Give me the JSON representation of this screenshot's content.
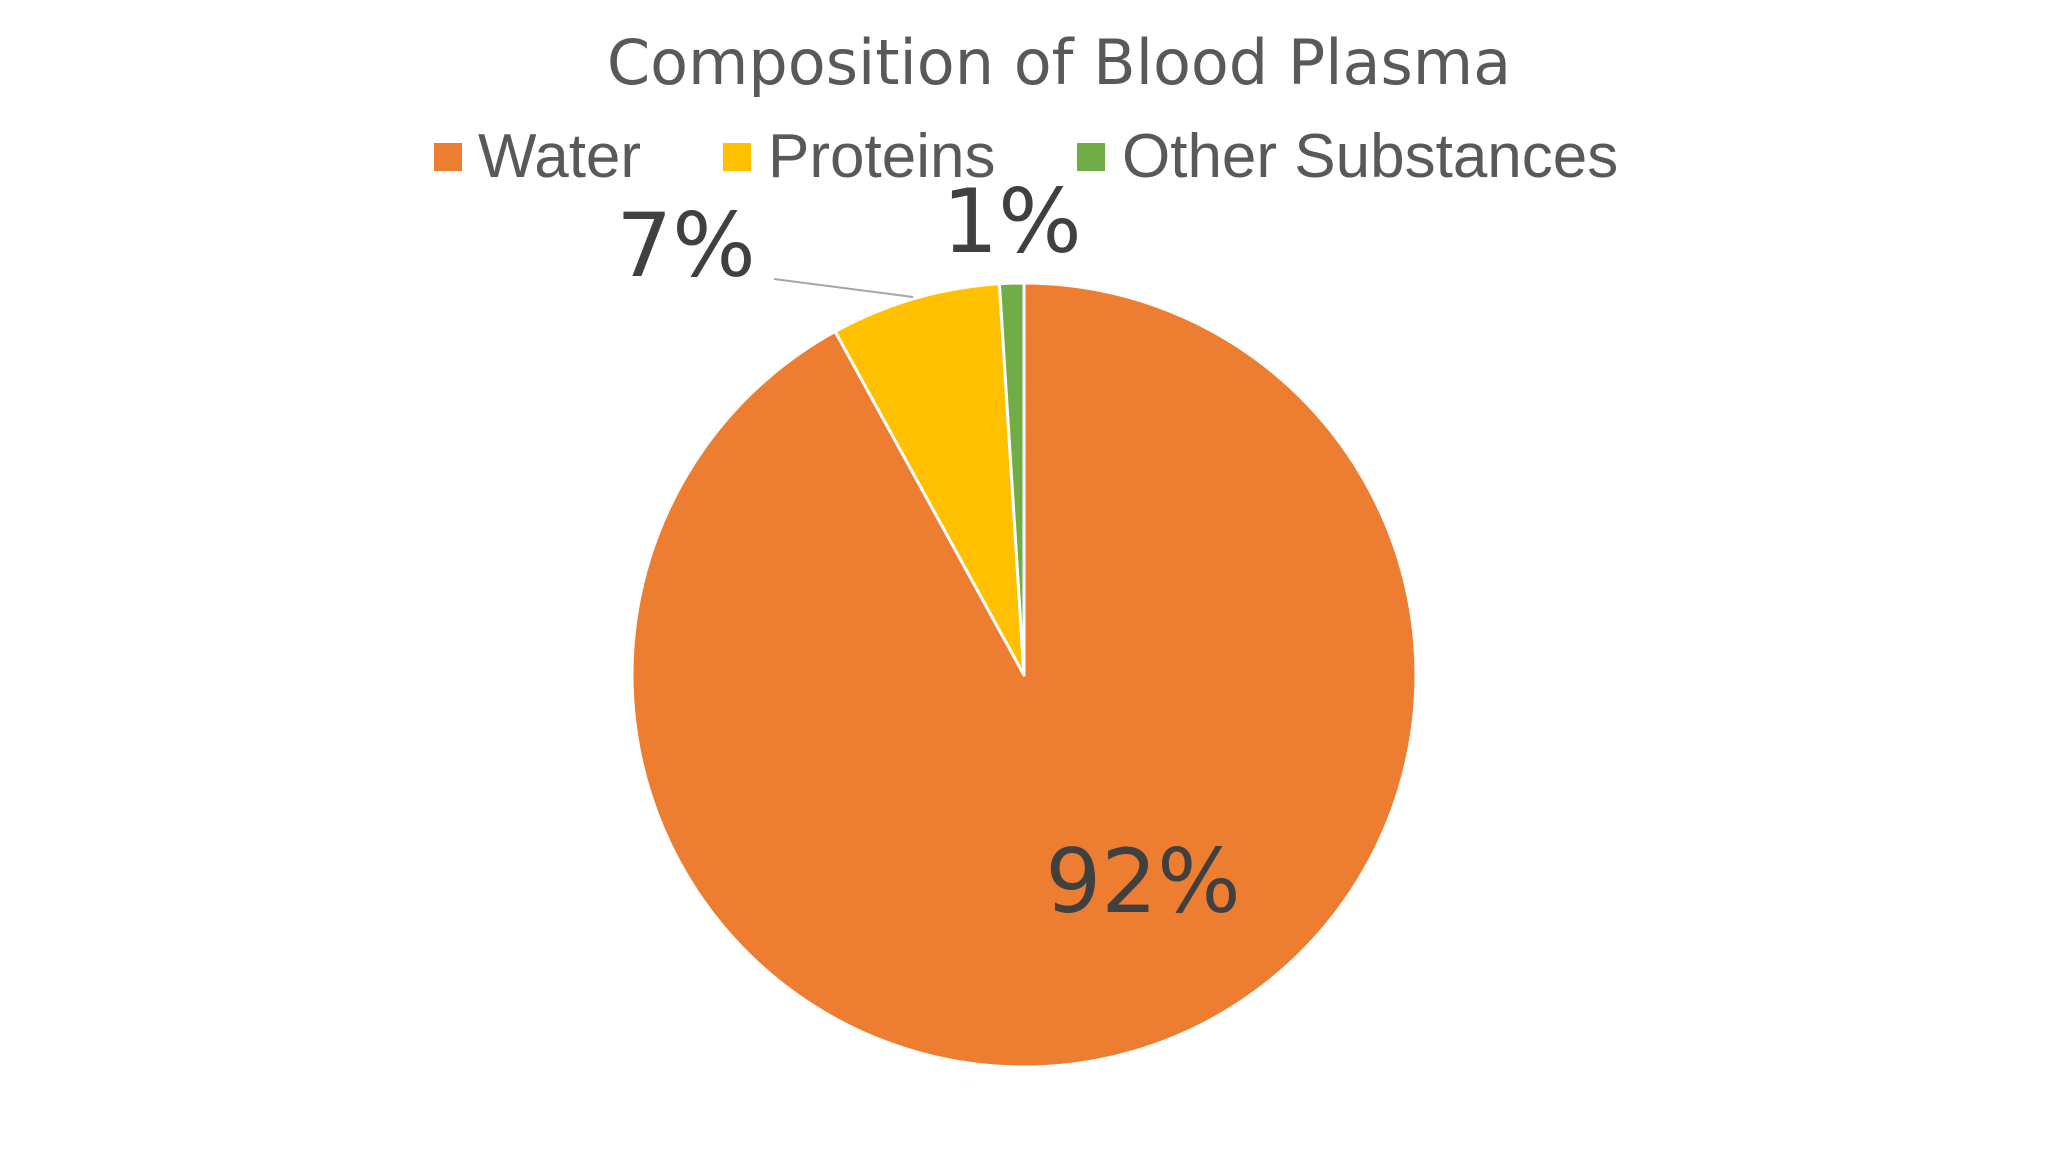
{
  "chart_data": {
    "type": "pie",
    "title": "Composition of Blood Plasma",
    "legend_position": "top",
    "start_angle_deg": 0,
    "direction": "clockwise",
    "slices": [
      {
        "name": "Water",
        "value": 92,
        "label": "92%",
        "color": "#ED7D31"
      },
      {
        "name": "Proteins",
        "value": 7,
        "label": "7%",
        "color": "#FFC000"
      },
      {
        "name": "Other Substances",
        "value": 1,
        "label": "1%",
        "color": "#70AD47"
      }
    ]
  }
}
